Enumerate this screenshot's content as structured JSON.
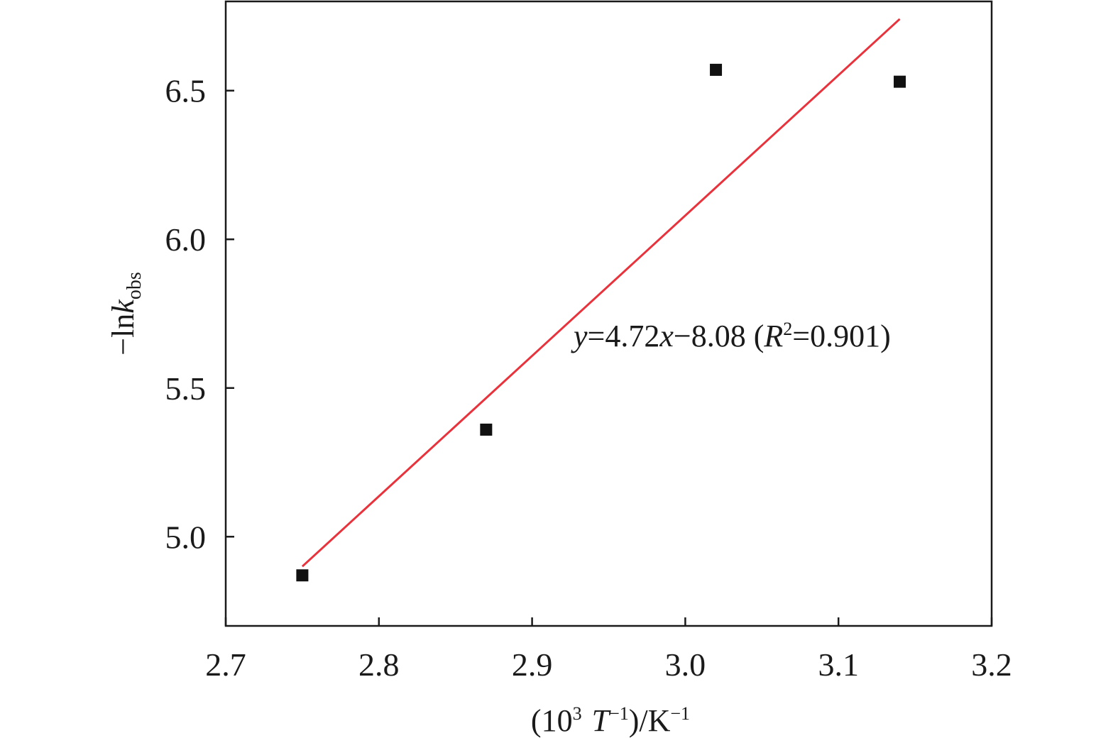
{
  "chart_data": {
    "type": "scatter",
    "title": "",
    "xlabel": {
      "open": "(10",
      "exp": "3",
      "var": "T",
      "var_exp": "−1",
      "close": ")/K",
      "unit_exp": "−1"
    },
    "ylabel": {
      "prefix": "−ln",
      "var": "k",
      "sub": "obs"
    },
    "xlim": [
      2.7,
      3.2
    ],
    "ylim": [
      4.7,
      6.8
    ],
    "xticks": [
      2.7,
      2.8,
      2.9,
      3.0,
      3.1,
      3.2
    ],
    "xtick_labels": [
      "2.7",
      "2.8",
      "2.9",
      "3.0",
      "3.1",
      "3.2"
    ],
    "yticks": [
      5.0,
      5.5,
      6.0,
      6.5
    ],
    "ytick_labels": [
      "5.0",
      "5.5",
      "6.0",
      "6.5"
    ],
    "grid": false,
    "points": {
      "x": [
        2.75,
        2.87,
        3.02,
        3.14
      ],
      "y": [
        4.87,
        5.36,
        6.57,
        6.53
      ]
    },
    "fit": {
      "slope": 4.72,
      "intercept": -8.08,
      "x_range": [
        2.75,
        3.14
      ],
      "color": "#e8323c",
      "equation": {
        "y": "y",
        "mid": "=4.72",
        "x": "x",
        "rest": "−8.08 (",
        "R": "R",
        "R_exp": "2",
        "end": "=0.901)"
      }
    },
    "marker_color": "#111111",
    "axis_color": "#1a1a1a"
  }
}
